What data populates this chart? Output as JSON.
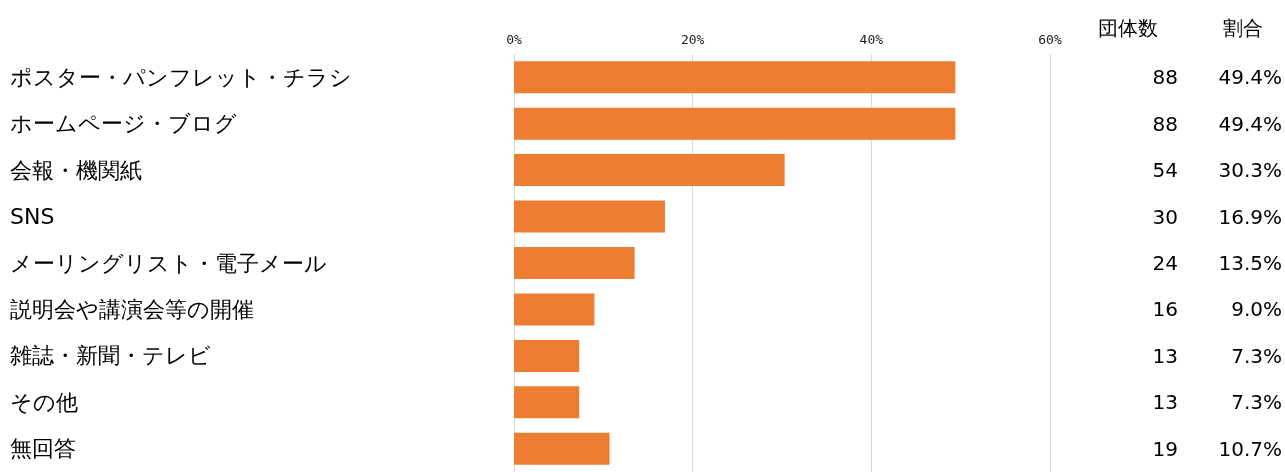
{
  "chart_data": {
    "type": "bar",
    "orientation": "horizontal",
    "categories": [
      "ポスター・パンフレット・チラシ",
      "ホームページ・ブログ",
      "会報・機関紙",
      "SNS",
      "メーリングリスト・電子メール",
      "説明会や講演会等の開催",
      "雑誌・新聞・テレビ",
      "その他",
      "無回答"
    ],
    "values": [
      49.4,
      49.4,
      30.3,
      16.9,
      13.5,
      9.0,
      7.3,
      7.3,
      10.7
    ],
    "value_labels": [
      "49.4%",
      "49.4%",
      "30.3%",
      "16.9%",
      "13.5%",
      "9.0%",
      "7.3%",
      "7.3%",
      "10.7%"
    ],
    "color": "#ed7d31",
    "xlim": [
      0,
      60
    ],
    "xticks": [
      {
        "value": 0,
        "label": "0%"
      },
      {
        "value": 20,
        "label": "20%"
      },
      {
        "value": 40,
        "label": "40%"
      },
      {
        "value": 60,
        "label": "60%"
      }
    ],
    "grid": "x",
    "annotations": [
      "団体数",
      "割合",
      "88",
      "88",
      "54",
      "30",
      "24",
      "16",
      "13",
      "13",
      "19"
    ]
  }
}
